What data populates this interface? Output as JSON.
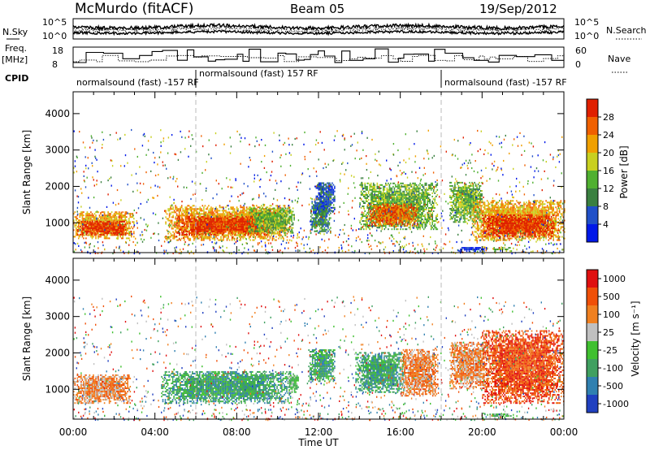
{
  "header": {
    "station": "McMurdo (fitACF)",
    "beam": "Beam 05",
    "date": "19/Sep/2012"
  },
  "side_labels": {
    "nsky": "N.Sky",
    "nsky_ticks": [
      "10^5",
      "10^0"
    ],
    "nsearch": "N.Search",
    "nsearch_ticks": [
      "10^5",
      "10^0"
    ],
    "freq": "Freq.",
    "freq_unit": "[MHz]",
    "freq_ticks": [
      "18",
      "8"
    ],
    "nave": "Nave",
    "nave_ticks": [
      "60",
      "0"
    ],
    "cpid": "CPID"
  },
  "cpid_segments": [
    {
      "label": "normalsound (fast) -157 RF",
      "start_hour": 0,
      "end_hour": 6
    },
    {
      "label": "normalsound (fast) 157 RF",
      "start_hour": 6,
      "end_hour": 18
    },
    {
      "label": "normalsound (fast) -157 RF",
      "start_hour": 18,
      "end_hour": 24
    }
  ],
  "colors": {
    "power": [
      "#0018e8",
      "#2050c8",
      "#3a8040",
      "#50b030",
      "#c8d020",
      "#f0a000",
      "#f06000",
      "#e02000"
    ],
    "velocity": [
      "#e01010",
      "#f05008",
      "#f08020",
      "#c0c0c0",
      "#40c030",
      "#40a060",
      "#3080b0",
      "#2040c0"
    ]
  },
  "power_colorbar": {
    "label": "Power [dB]",
    "ticks": [
      "4",
      "8",
      "12",
      "16",
      "20",
      "24",
      "28"
    ]
  },
  "velocity_colorbar": {
    "label": "Velocity [m s⁻¹]",
    "ticks": [
      "1000",
      "500",
      "100",
      "25",
      "-25",
      "-100",
      "-500",
      "-1000"
    ]
  },
  "chart_data": [
    {
      "type": "heatmap",
      "title": "",
      "xlabel": "Time UT",
      "ylabel": "Slant Range [km]",
      "xlim": [
        0,
        24
      ],
      "ylim": [
        180,
        4600
      ],
      "x_ticks": [
        "00:00",
        "04:00",
        "08:00",
        "12:00",
        "16:00",
        "20:00",
        "00:00"
      ],
      "y_ticks": [
        1000,
        2000,
        3000,
        4000
      ],
      "color_variable": "Power [dB]",
      "scatter_regions": [
        {
          "t0": 0.0,
          "t1": 3.0,
          "r0": 550,
          "r1": 1300,
          "level": 5
        },
        {
          "t0": 0.2,
          "t1": 2.6,
          "r0": 650,
          "r1": 1050,
          "level": 7
        },
        {
          "t0": 4.5,
          "t1": 10.6,
          "r0": 500,
          "r1": 1450,
          "level": 5
        },
        {
          "t0": 5.0,
          "t1": 9.5,
          "r0": 650,
          "r1": 1150,
          "level": 7
        },
        {
          "t0": 8.5,
          "t1": 10.8,
          "r0": 700,
          "r1": 1400,
          "level": 3
        },
        {
          "t0": 11.6,
          "t1": 12.6,
          "r0": 700,
          "r1": 1600,
          "level": 2
        },
        {
          "t0": 11.8,
          "t1": 12.8,
          "r0": 1300,
          "r1": 2100,
          "level": 1
        },
        {
          "t0": 14.0,
          "t1": 17.8,
          "r0": 800,
          "r1": 2100,
          "level": 3
        },
        {
          "t0": 14.4,
          "t1": 16.8,
          "r0": 900,
          "r1": 1500,
          "level": 6
        },
        {
          "t0": 18.4,
          "t1": 20.0,
          "r0": 1000,
          "r1": 2100,
          "level": 3
        },
        {
          "t0": 19.5,
          "t1": 24.0,
          "r0": 500,
          "r1": 1600,
          "level": 5
        },
        {
          "t0": 20.0,
          "t1": 23.5,
          "r0": 600,
          "r1": 1200,
          "level": 7
        },
        {
          "t0": 18.8,
          "t1": 20.2,
          "r0": 200,
          "r1": 320,
          "level": 0
        },
        {
          "t0": 20.5,
          "t1": 21.4,
          "r0": 200,
          "r1": 300,
          "level": 3
        }
      ]
    },
    {
      "type": "heatmap",
      "title": "",
      "xlabel": "Time UT",
      "ylabel": "Slant Range [km]",
      "xlim": [
        0,
        24
      ],
      "ylim": [
        180,
        4600
      ],
      "x_ticks": [
        "00:00",
        "04:00",
        "08:00",
        "12:00",
        "16:00",
        "20:00",
        "00:00"
      ],
      "y_ticks": [
        1000,
        2000,
        3000,
        4000
      ],
      "color_variable": "Velocity [m s⁻¹]",
      "scatter_regions": [
        {
          "t0": 0.0,
          "t1": 2.8,
          "r0": 600,
          "r1": 1400,
          "level": 2
        },
        {
          "t0": 4.3,
          "t1": 10.6,
          "r0": 600,
          "r1": 1500,
          "level": 5
        },
        {
          "t0": 10.5,
          "t1": 11.0,
          "r0": 900,
          "r1": 1400,
          "level": 4
        },
        {
          "t0": 11.5,
          "t1": 12.8,
          "r0": 1200,
          "r1": 2100,
          "level": 5
        },
        {
          "t0": 13.8,
          "t1": 16.2,
          "r0": 900,
          "r1": 2000,
          "level": 5
        },
        {
          "t0": 16.0,
          "t1": 17.8,
          "r0": 800,
          "r1": 2100,
          "level": 2
        },
        {
          "t0": 18.4,
          "t1": 20.3,
          "r0": 1000,
          "r1": 2300,
          "level": 2
        },
        {
          "t0": 20.0,
          "t1": 24.0,
          "r0": 600,
          "r1": 2600,
          "level": 1
        },
        {
          "t0": 20.3,
          "t1": 21.5,
          "r0": 200,
          "r1": 320,
          "level": 4
        }
      ]
    }
  ]
}
